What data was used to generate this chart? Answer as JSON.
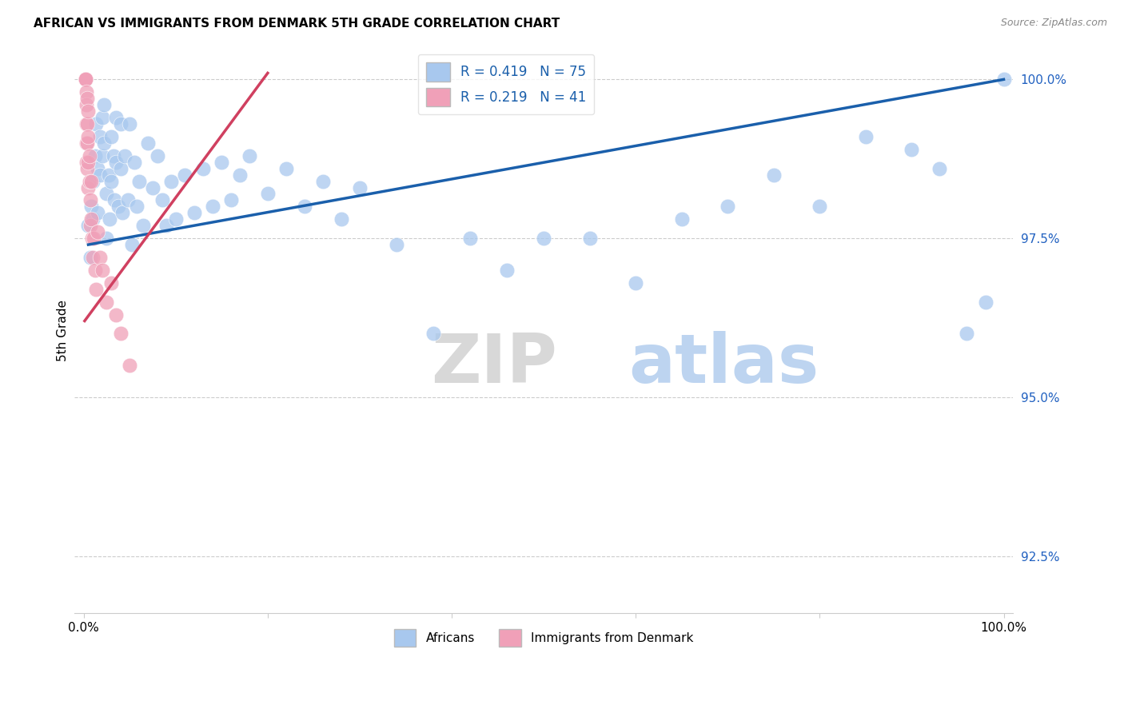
{
  "title": "AFRICAN VS IMMIGRANTS FROM DENMARK 5TH GRADE CORRELATION CHART",
  "source": "Source: ZipAtlas.com",
  "ylabel": "5th Grade",
  "xlim": [
    -0.01,
    1.01
  ],
  "ylim": [
    0.916,
    1.005
  ],
  "yticks": [
    0.925,
    0.95,
    0.975,
    1.0
  ],
  "ytick_labels": [
    "92.5%",
    "95.0%",
    "97.5%",
    "100.0%"
  ],
  "xtick_positions": [
    0.0,
    0.2,
    0.4,
    0.6,
    0.8,
    1.0
  ],
  "xtick_labels": [
    "0.0%",
    "",
    "",
    "",
    "",
    "100.0%"
  ],
  "legend_blue_label": "Africans",
  "legend_pink_label": "Immigrants from Denmark",
  "r_blue": 0.419,
  "n_blue": 75,
  "r_pink": 0.219,
  "n_pink": 41,
  "blue_color": "#A8C8EE",
  "pink_color": "#F0A0B8",
  "trendline_blue_color": "#1A5FAB",
  "trendline_pink_color": "#D04060",
  "blue_scatter_x": [
    0.005,
    0.007,
    0.008,
    0.01,
    0.01,
    0.012,
    0.013,
    0.015,
    0.015,
    0.018,
    0.018,
    0.02,
    0.02,
    0.022,
    0.022,
    0.025,
    0.025,
    0.027,
    0.028,
    0.03,
    0.03,
    0.032,
    0.033,
    0.035,
    0.035,
    0.038,
    0.04,
    0.04,
    0.042,
    0.045,
    0.048,
    0.05,
    0.052,
    0.055,
    0.058,
    0.06,
    0.065,
    0.07,
    0.075,
    0.08,
    0.085,
    0.09,
    0.095,
    0.1,
    0.11,
    0.12,
    0.13,
    0.14,
    0.15,
    0.16,
    0.17,
    0.18,
    0.2,
    0.22,
    0.24,
    0.26,
    0.28,
    0.3,
    0.34,
    0.38,
    0.42,
    0.46,
    0.5,
    0.55,
    0.6,
    0.65,
    0.7,
    0.75,
    0.8,
    0.85,
    0.9,
    0.93,
    0.96,
    0.98,
    1.0
  ],
  "blue_scatter_y": [
    0.977,
    0.972,
    0.98,
    0.984,
    0.978,
    0.988,
    0.993,
    0.986,
    0.979,
    0.991,
    0.985,
    0.994,
    0.988,
    0.996,
    0.99,
    0.982,
    0.975,
    0.985,
    0.978,
    0.991,
    0.984,
    0.988,
    0.981,
    0.994,
    0.987,
    0.98,
    0.993,
    0.986,
    0.979,
    0.988,
    0.981,
    0.993,
    0.974,
    0.987,
    0.98,
    0.984,
    0.977,
    0.99,
    0.983,
    0.988,
    0.981,
    0.977,
    0.984,
    0.978,
    0.985,
    0.979,
    0.986,
    0.98,
    0.987,
    0.981,
    0.985,
    0.988,
    0.982,
    0.986,
    0.98,
    0.984,
    0.978,
    0.983,
    0.974,
    0.96,
    0.975,
    0.97,
    0.975,
    0.975,
    0.968,
    0.978,
    0.98,
    0.985,
    0.98,
    0.991,
    0.989,
    0.986,
    0.96,
    0.965,
    1.0
  ],
  "pink_scatter_x": [
    0.002,
    0.002,
    0.002,
    0.002,
    0.002,
    0.002,
    0.002,
    0.002,
    0.002,
    0.003,
    0.003,
    0.003,
    0.003,
    0.003,
    0.004,
    0.004,
    0.004,
    0.004,
    0.005,
    0.005,
    0.005,
    0.005,
    0.006,
    0.006,
    0.007,
    0.007,
    0.008,
    0.008,
    0.009,
    0.01,
    0.011,
    0.012,
    0.013,
    0.015,
    0.018,
    0.02,
    0.025,
    0.03,
    0.035,
    0.04,
    0.05
  ],
  "pink_scatter_y": [
    1.0,
    1.0,
    1.0,
    1.0,
    1.0,
    1.0,
    1.0,
    1.0,
    1.0,
    0.998,
    0.996,
    0.993,
    0.99,
    0.987,
    0.997,
    0.993,
    0.99,
    0.986,
    0.995,
    0.991,
    0.987,
    0.983,
    0.988,
    0.984,
    0.981,
    0.977,
    0.984,
    0.978,
    0.975,
    0.972,
    0.975,
    0.97,
    0.967,
    0.976,
    0.972,
    0.97,
    0.965,
    0.968,
    0.963,
    0.96,
    0.955
  ],
  "trendline_blue_x0": 0.005,
  "trendline_blue_x1": 1.0,
  "trendline_blue_y0": 0.974,
  "trendline_blue_y1": 1.0,
  "trendline_pink_x0": 0.001,
  "trendline_pink_x1": 0.2,
  "trendline_pink_y0": 0.962,
  "trendline_pink_y1": 1.001
}
